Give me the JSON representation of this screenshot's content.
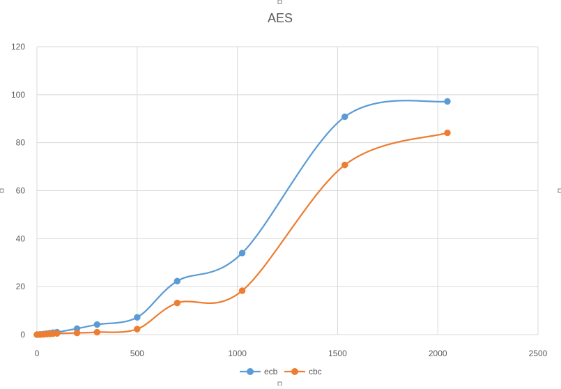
{
  "chart_data": {
    "type": "line",
    "title": "AES",
    "xlabel": "",
    "ylabel": "",
    "xlim": [
      0,
      2500
    ],
    "ylim": [
      0,
      120
    ],
    "x_ticks": [
      "0",
      "500",
      "1000",
      "1500",
      "2000",
      "2500"
    ],
    "y_ticks": [
      "0",
      "20",
      "40",
      "60",
      "80",
      "100",
      "120"
    ],
    "grid": true,
    "smooth": true,
    "legend_position": "bottom",
    "series": [
      {
        "name": "ecb",
        "color": "#5b9bd5",
        "points": [
          {
            "x": 0,
            "y": 0
          },
          {
            "x": 16,
            "y": 0.1
          },
          {
            "x": 32,
            "y": 0.2
          },
          {
            "x": 48,
            "y": 0.4
          },
          {
            "x": 64,
            "y": 0.6
          },
          {
            "x": 80,
            "y": 0.8
          },
          {
            "x": 100,
            "y": 1.0
          },
          {
            "x": 200,
            "y": 2.5
          },
          {
            "x": 300,
            "y": 4.2
          },
          {
            "x": 500,
            "y": 7.2
          },
          {
            "x": 700,
            "y": 22.3
          },
          {
            "x": 1024,
            "y": 34
          },
          {
            "x": 1536,
            "y": 90.8
          },
          {
            "x": 2048,
            "y": 97.2
          }
        ]
      },
      {
        "name": "cbc",
        "color": "#ed7d31",
        "points": [
          {
            "x": 0,
            "y": 0
          },
          {
            "x": 16,
            "y": 0
          },
          {
            "x": 32,
            "y": 0.1
          },
          {
            "x": 48,
            "y": 0.2
          },
          {
            "x": 64,
            "y": 0.3
          },
          {
            "x": 80,
            "y": 0.4
          },
          {
            "x": 100,
            "y": 0.5
          },
          {
            "x": 200,
            "y": 0.7
          },
          {
            "x": 300,
            "y": 1.0
          },
          {
            "x": 500,
            "y": 2.3
          },
          {
            "x": 700,
            "y": 13.2
          },
          {
            "x": 1024,
            "y": 18.3
          },
          {
            "x": 1536,
            "y": 70.7
          },
          {
            "x": 2048,
            "y": 84.1
          }
        ]
      }
    ]
  }
}
